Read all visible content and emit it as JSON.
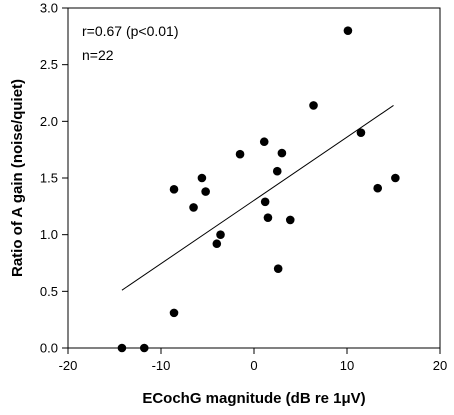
{
  "chart_data": {
    "type": "scatter",
    "xlabel": "ECochG magnitude (dB re 1μV)",
    "ylabel": "Ratio of A gain (noise/quiet)",
    "xlim": [
      -20,
      20
    ],
    "ylim": [
      0.0,
      3.0
    ],
    "xticks": [
      "-20",
      "-10",
      "0",
      "10",
      "20"
    ],
    "yticks": [
      "0.0",
      "0.5",
      "1.0",
      "1.5",
      "2.0",
      "2.5",
      "3.0"
    ],
    "annotations": [
      "r=0.67 (p<0.01)",
      "n=22"
    ],
    "grid": false,
    "legend": "none",
    "points": [
      {
        "x": -14.2,
        "y": 0.0
      },
      {
        "x": -11.8,
        "y": 0.0
      },
      {
        "x": -8.6,
        "y": 0.31
      },
      {
        "x": -8.6,
        "y": 1.4
      },
      {
        "x": -6.5,
        "y": 1.24
      },
      {
        "x": -5.6,
        "y": 1.5
      },
      {
        "x": -5.2,
        "y": 1.38
      },
      {
        "x": -4.0,
        "y": 0.92
      },
      {
        "x": -3.6,
        "y": 1.0
      },
      {
        "x": -1.5,
        "y": 1.71
      },
      {
        "x": 1.1,
        "y": 1.82
      },
      {
        "x": 1.2,
        "y": 1.29
      },
      {
        "x": 1.5,
        "y": 1.15
      },
      {
        "x": 2.5,
        "y": 1.56
      },
      {
        "x": 2.6,
        "y": 0.7
      },
      {
        "x": 3.0,
        "y": 1.72
      },
      {
        "x": 3.9,
        "y": 1.13
      },
      {
        "x": 6.4,
        "y": 2.14
      },
      {
        "x": 10.1,
        "y": 2.8
      },
      {
        "x": 11.5,
        "y": 1.9
      },
      {
        "x": 13.3,
        "y": 1.41
      },
      {
        "x": 15.2,
        "y": 1.5
      }
    ],
    "fit_line": {
      "x": [
        -14.2,
        15.0
      ],
      "y": [
        0.51,
        2.14
      ]
    }
  }
}
